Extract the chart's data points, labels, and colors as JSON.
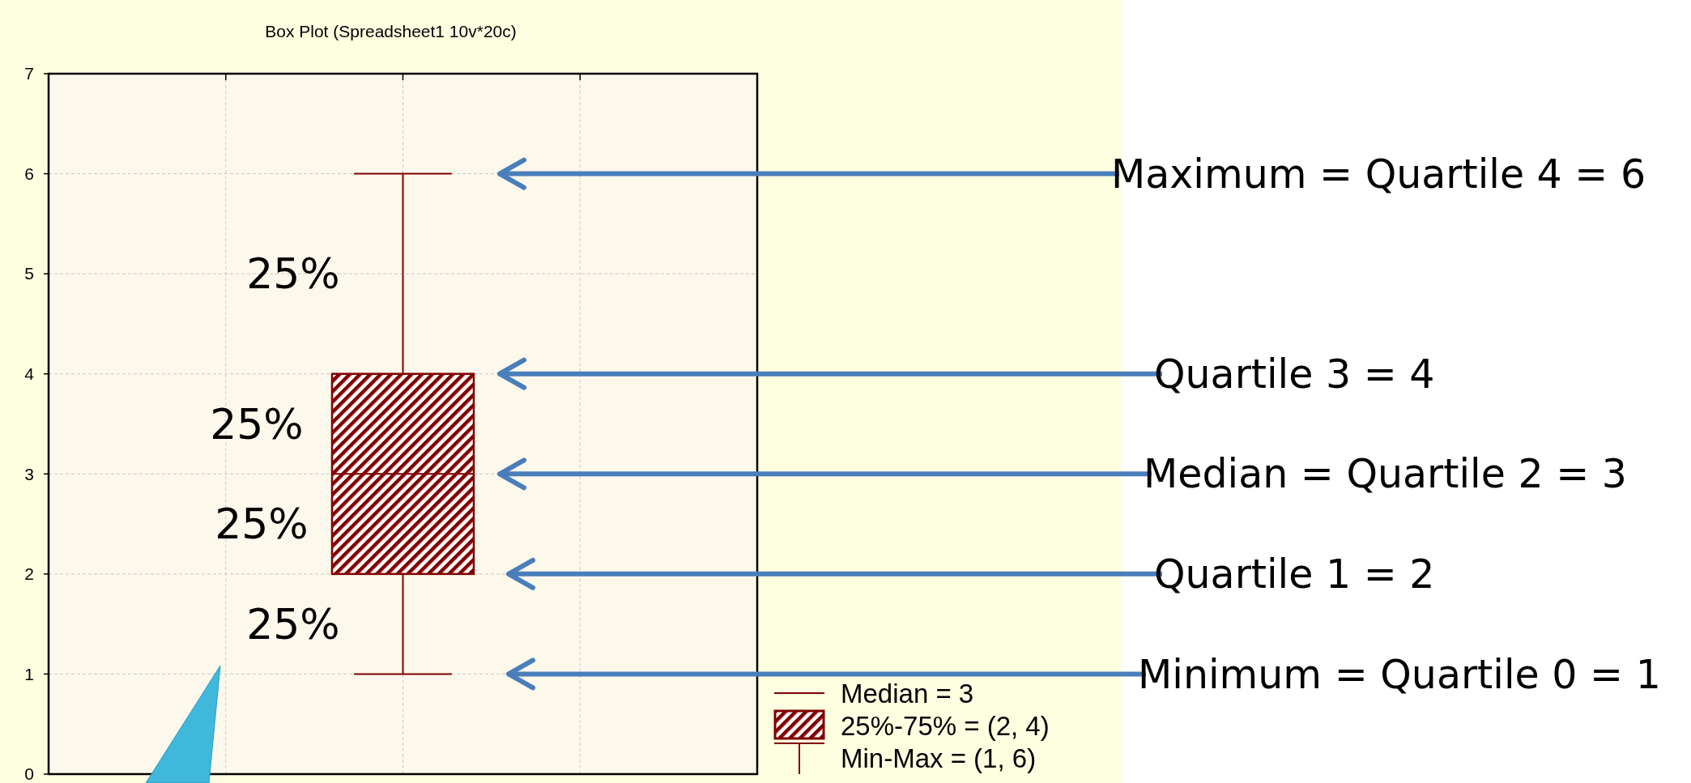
{
  "chart_data": {
    "type": "box",
    "title": "Box Plot (Spreadsheet1 10v*20c)",
    "categories": [
      null
    ],
    "series": [
      {
        "color": "#800000",
        "boxes": [
          {
            "low": 1,
            "q1": 2,
            "median": 3,
            "q3": 4,
            "high": 6
          }
        ]
      }
    ],
    "ylim": [
      0,
      7
    ],
    "yticks": [
      0,
      1,
      2,
      3,
      4,
      5,
      6,
      7
    ],
    "grid": true,
    "annotations": [
      "Maximum = Quartile 4 = 6",
      "Quartile 3 = 4",
      "Median = Quartile 2 = 3",
      "Quartile 1 = 2",
      "Minimum = Quartile 0 = 1",
      "25%",
      "25%",
      "25%",
      "25%",
      "Median = 3",
      "25%-75% = (2, 4)",
      "Min-Max = (1, 6)"
    ]
  }
}
